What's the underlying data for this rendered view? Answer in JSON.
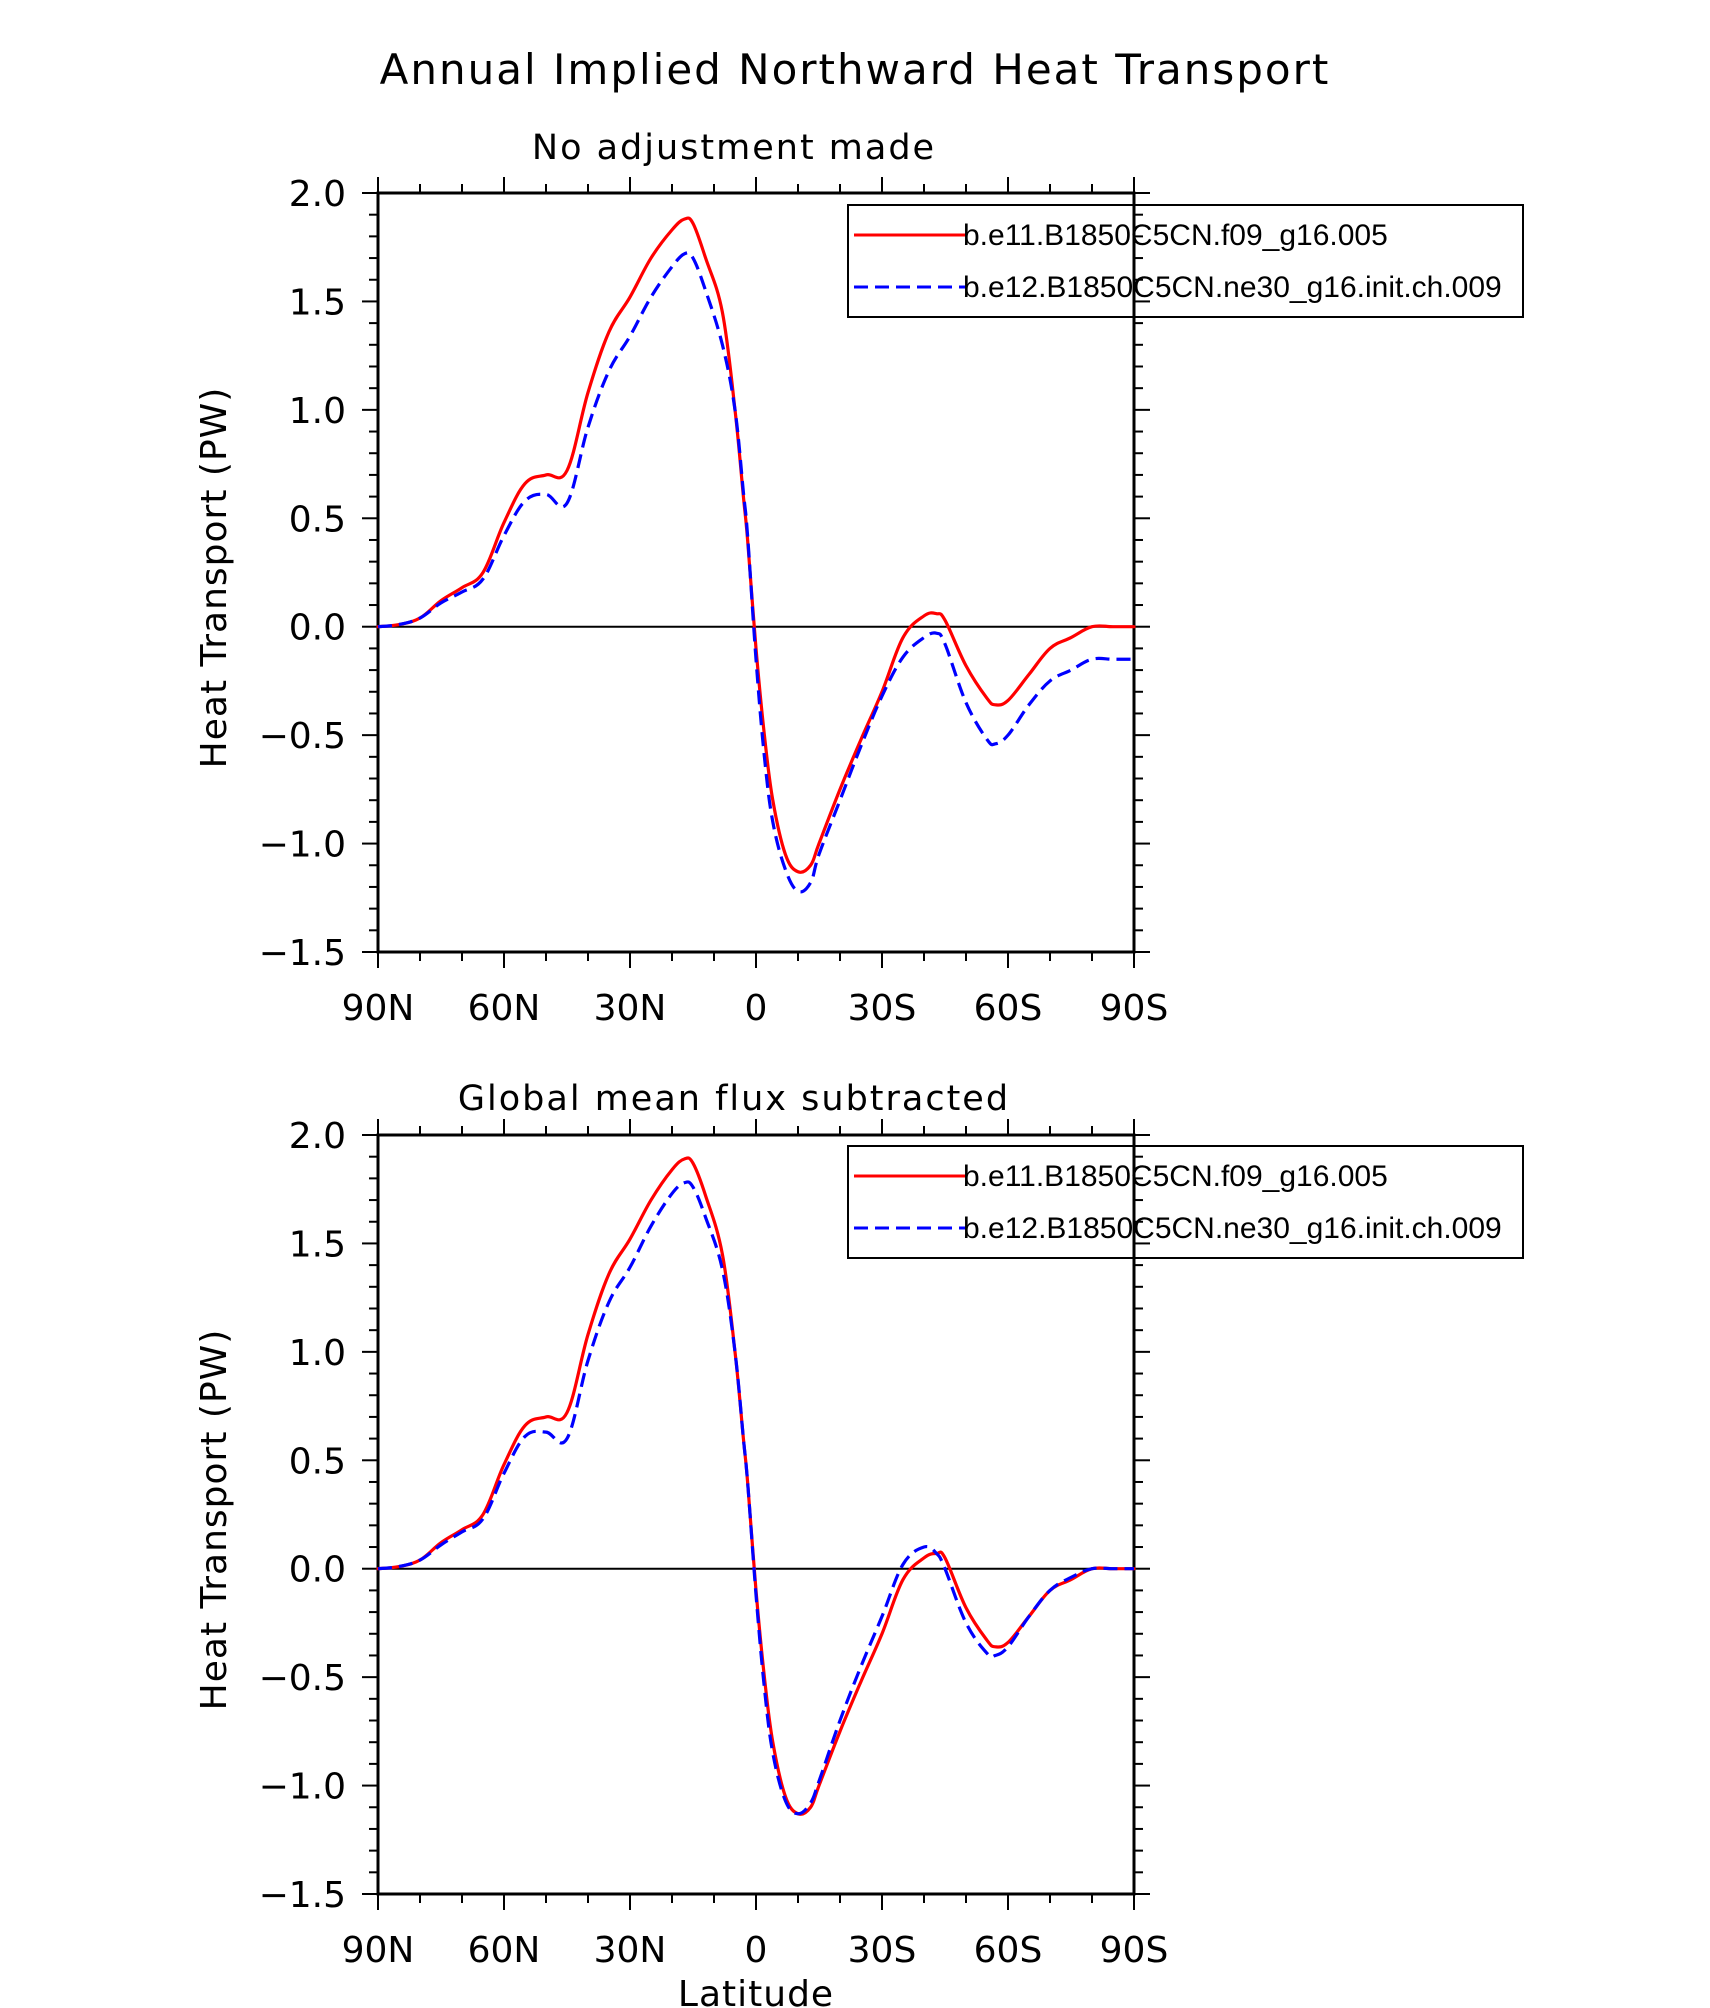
{
  "figure": {
    "title": "Annual Implied Northward Heat Transport"
  },
  "colors": {
    "series1": "#ff0000",
    "series2": "#0000ff",
    "axes": "#000000"
  },
  "chart_data": [
    {
      "type": "line",
      "title": "No adjustment made",
      "xlabel": "",
      "ylabel": "Heat Transport (PW)",
      "xlim": [
        90,
        -90
      ],
      "ylim": [
        -1.5,
        2.0
      ],
      "x_ticks": [
        {
          "value": 90,
          "label": "90N"
        },
        {
          "value": 60,
          "label": "60N"
        },
        {
          "value": 30,
          "label": "30N"
        },
        {
          "value": 0,
          "label": "0"
        },
        {
          "value": -30,
          "label": "30S"
        },
        {
          "value": -60,
          "label": "60S"
        },
        {
          "value": -90,
          "label": "90S"
        }
      ],
      "y_ticks": [
        {
          "value": 2.0,
          "label": "2.0"
        },
        {
          "value": 1.5,
          "label": "1.5"
        },
        {
          "value": 1.0,
          "label": "1.0"
        },
        {
          "value": 0.5,
          "label": "0.5"
        },
        {
          "value": 0.0,
          "label": "0.0"
        },
        {
          "value": -0.5,
          "label": "−0.5"
        },
        {
          "value": -1.0,
          "label": "−1.0"
        },
        {
          "value": -1.5,
          "label": "−1.5"
        }
      ],
      "zero_line": true,
      "legend_position": "top-right",
      "series": [
        {
          "name": "b.e11.B1850C5CN.f09_g16.005",
          "color": "#ff0000",
          "dash": "solid",
          "x": [
            90,
            85,
            80,
            75,
            70,
            65,
            60,
            55,
            50,
            45,
            40,
            35,
            30,
            25,
            20,
            17,
            15,
            12,
            8,
            5,
            3,
            2,
            0,
            -2,
            -4,
            -7,
            -10,
            -13,
            -15,
            -20,
            -25,
            -30,
            -35,
            -40,
            -43,
            -45,
            -50,
            -55,
            -57,
            -60,
            -65,
            -70,
            -75,
            -80,
            -85,
            -90
          ],
          "y": [
            0.0,
            0.01,
            0.04,
            0.12,
            0.18,
            0.25,
            0.48,
            0.66,
            0.7,
            0.72,
            1.08,
            1.36,
            1.52,
            1.7,
            1.83,
            1.88,
            1.86,
            1.7,
            1.45,
            1.0,
            0.6,
            0.4,
            -0.1,
            -0.5,
            -0.8,
            -1.05,
            -1.13,
            -1.1,
            -1.0,
            -0.75,
            -0.52,
            -0.3,
            -0.05,
            0.05,
            0.06,
            0.03,
            -0.18,
            -0.33,
            -0.36,
            -0.34,
            -0.22,
            -0.1,
            -0.05,
            0.0,
            0.0,
            0.0
          ]
        },
        {
          "name": "b.e12.B1850C5CN.ne30_g16.init.ch.009",
          "color": "#0000ff",
          "dash": "dashed",
          "x": [
            90,
            85,
            80,
            75,
            70,
            65,
            60,
            55,
            50,
            45,
            40,
            35,
            30,
            25,
            20,
            17,
            15,
            12,
            8,
            5,
            3,
            2,
            0,
            -2,
            -4,
            -7,
            -10,
            -13,
            -15,
            -20,
            -25,
            -30,
            -35,
            -40,
            -43,
            -45,
            -50,
            -55,
            -57,
            -60,
            -65,
            -70,
            -75,
            -80,
            -85,
            -90
          ],
          "y": [
            0.0,
            0.01,
            0.04,
            0.11,
            0.16,
            0.22,
            0.42,
            0.58,
            0.61,
            0.57,
            0.92,
            1.18,
            1.34,
            1.52,
            1.66,
            1.72,
            1.7,
            1.55,
            1.3,
            1.0,
            0.62,
            0.42,
            -0.15,
            -0.6,
            -0.9,
            -1.12,
            -1.22,
            -1.18,
            -1.05,
            -0.8,
            -0.55,
            -0.32,
            -0.14,
            -0.05,
            -0.03,
            -0.08,
            -0.35,
            -0.52,
            -0.54,
            -0.5,
            -0.36,
            -0.25,
            -0.2,
            -0.15,
            -0.15,
            -0.15
          ]
        }
      ]
    },
    {
      "type": "line",
      "title": "Global mean flux subtracted",
      "xlabel": "Latitude",
      "ylabel": "Heat Transport (PW)",
      "xlim": [
        90,
        -90
      ],
      "ylim": [
        -1.5,
        2.0
      ],
      "x_ticks": [
        {
          "value": 90,
          "label": "90N"
        },
        {
          "value": 60,
          "label": "60N"
        },
        {
          "value": 30,
          "label": "30N"
        },
        {
          "value": 0,
          "label": "0"
        },
        {
          "value": -30,
          "label": "30S"
        },
        {
          "value": -60,
          "label": "60S"
        },
        {
          "value": -90,
          "label": "90S"
        }
      ],
      "y_ticks": [
        {
          "value": 2.0,
          "label": "2.0"
        },
        {
          "value": 1.5,
          "label": "1.5"
        },
        {
          "value": 1.0,
          "label": "1.0"
        },
        {
          "value": 0.5,
          "label": "0.5"
        },
        {
          "value": 0.0,
          "label": "0.0"
        },
        {
          "value": -0.5,
          "label": "−0.5"
        },
        {
          "value": -1.0,
          "label": "−1.0"
        },
        {
          "value": -1.5,
          "label": "−1.5"
        }
      ],
      "zero_line": true,
      "legend_position": "top-right",
      "series": [
        {
          "name": "b.e11.B1850C5CN.f09_g16.005",
          "color": "#ff0000",
          "dash": "solid",
          "x": [
            90,
            85,
            80,
            75,
            70,
            65,
            60,
            55,
            50,
            45,
            40,
            35,
            30,
            25,
            20,
            17,
            15,
            12,
            8,
            5,
            3,
            2,
            0,
            -2,
            -4,
            -7,
            -10,
            -13,
            -15,
            -20,
            -25,
            -30,
            -35,
            -40,
            -43,
            -45,
            -50,
            -55,
            -57,
            -60,
            -65,
            -70,
            -75,
            -80,
            -85,
            -90
          ],
          "y": [
            0.0,
            0.01,
            0.04,
            0.12,
            0.18,
            0.25,
            0.48,
            0.66,
            0.7,
            0.72,
            1.08,
            1.36,
            1.52,
            1.7,
            1.84,
            1.89,
            1.87,
            1.72,
            1.45,
            1.0,
            0.6,
            0.4,
            -0.1,
            -0.5,
            -0.8,
            -1.05,
            -1.13,
            -1.1,
            -1.0,
            -0.75,
            -0.52,
            -0.3,
            -0.05,
            0.05,
            0.07,
            0.05,
            -0.18,
            -0.33,
            -0.36,
            -0.34,
            -0.22,
            -0.1,
            -0.05,
            0.0,
            0.0,
            0.0
          ]
        },
        {
          "name": "b.e12.B1850C5CN.ne30_g16.init.ch.009",
          "color": "#0000ff",
          "dash": "dashed",
          "x": [
            90,
            85,
            80,
            75,
            70,
            65,
            60,
            55,
            50,
            45,
            40,
            35,
            30,
            25,
            20,
            17,
            15,
            12,
            8,
            5,
            3,
            2,
            0,
            -2,
            -4,
            -7,
            -10,
            -13,
            -15,
            -20,
            -25,
            -30,
            -35,
            -40,
            -43,
            -45,
            -50,
            -55,
            -57,
            -60,
            -65,
            -70,
            -75,
            -80,
            -85,
            -90
          ],
          "y": [
            0.0,
            0.01,
            0.04,
            0.11,
            0.17,
            0.23,
            0.44,
            0.61,
            0.63,
            0.6,
            0.96,
            1.23,
            1.39,
            1.58,
            1.73,
            1.78,
            1.76,
            1.62,
            1.38,
            1.0,
            0.6,
            0.4,
            -0.12,
            -0.55,
            -0.85,
            -1.07,
            -1.13,
            -1.08,
            -0.98,
            -0.7,
            -0.45,
            -0.22,
            0.02,
            0.1,
            0.07,
            0.0,
            -0.25,
            -0.39,
            -0.4,
            -0.36,
            -0.22,
            -0.1,
            -0.04,
            0.0,
            0.0,
            0.0
          ]
        }
      ]
    }
  ]
}
